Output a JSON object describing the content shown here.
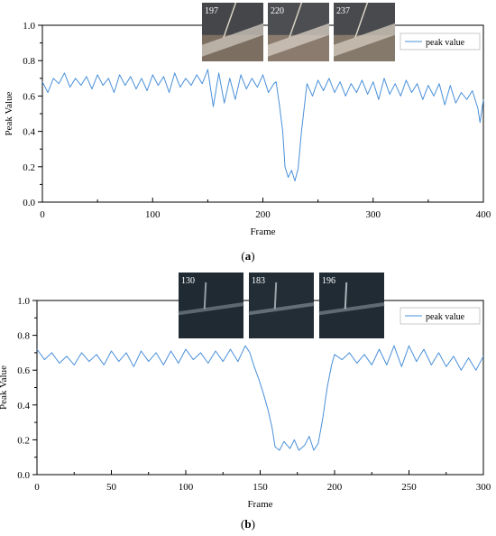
{
  "panels": [
    {
      "caption": "(a)",
      "caption_letter": "a",
      "thumbnails": [
        {
          "label": "197",
          "colors": [
            "#7d6e62",
            "#3a3f46",
            "#c9c2b8"
          ]
        },
        {
          "label": "220",
          "colors": [
            "#8a7b6e",
            "#41464d",
            "#d2cbc0"
          ]
        },
        {
          "label": "237",
          "colors": [
            "#85796c",
            "#3d4249",
            "#cfc7bc"
          ]
        }
      ],
      "chart_data": {
        "type": "line",
        "xlabel": "Frame",
        "ylabel": "Peak Value",
        "xlim": [
          0,
          400
        ],
        "ylim": [
          0.0,
          1.0
        ],
        "xticks": [
          0,
          100,
          200,
          300,
          400
        ],
        "yticks": [
          0.0,
          0.2,
          0.4,
          0.6,
          0.8,
          1.0
        ],
        "ytick_labels": [
          "0.0",
          "0.2",
          "0.4",
          "0.6",
          "0.8",
          "1.0"
        ],
        "grid": false,
        "legend": "top-right",
        "series": [
          {
            "name": "peak value",
            "color": "#4a90d9",
            "x": [
              0,
              5,
              10,
              15,
              20,
              25,
              30,
              35,
              40,
              45,
              50,
              55,
              60,
              65,
              70,
              75,
              80,
              85,
              90,
              95,
              100,
              105,
              110,
              115,
              120,
              125,
              130,
              135,
              140,
              145,
              150,
              155,
              160,
              165,
              170,
              175,
              180,
              185,
              190,
              195,
              200,
              205,
              210,
              212,
              215,
              218,
              220,
              223,
              226,
              229,
              232,
              235,
              240,
              245,
              250,
              255,
              260,
              265,
              270,
              275,
              280,
              285,
              290,
              295,
              300,
              305,
              310,
              315,
              320,
              325,
              330,
              335,
              340,
              345,
              350,
              355,
              360,
              365,
              370,
              375,
              380,
              385,
              390,
              395,
              397,
              400
            ],
            "y": [
              0.68,
              0.62,
              0.7,
              0.67,
              0.73,
              0.65,
              0.7,
              0.66,
              0.71,
              0.64,
              0.72,
              0.66,
              0.7,
              0.62,
              0.72,
              0.66,
              0.71,
              0.64,
              0.7,
              0.63,
              0.72,
              0.66,
              0.71,
              0.62,
              0.73,
              0.65,
              0.7,
              0.66,
              0.72,
              0.67,
              0.75,
              0.54,
              0.73,
              0.56,
              0.7,
              0.58,
              0.72,
              0.64,
              0.7,
              0.65,
              0.72,
              0.62,
              0.67,
              0.68,
              0.55,
              0.4,
              0.2,
              0.14,
              0.18,
              0.12,
              0.19,
              0.4,
              0.67,
              0.6,
              0.69,
              0.63,
              0.7,
              0.62,
              0.68,
              0.6,
              0.67,
              0.62,
              0.69,
              0.61,
              0.68,
              0.58,
              0.7,
              0.61,
              0.67,
              0.6,
              0.69,
              0.62,
              0.67,
              0.58,
              0.66,
              0.6,
              0.67,
              0.55,
              0.66,
              0.56,
              0.62,
              0.58,
              0.63,
              0.53,
              0.45,
              0.58
            ]
          }
        ]
      }
    },
    {
      "caption": "(b)",
      "caption_letter": "b",
      "thumbnails": [
        {
          "label": "130",
          "colors": [
            "#1f2a33",
            "#5d6770",
            "#c8d0d6"
          ]
        },
        {
          "label": "183",
          "colors": [
            "#222d36",
            "#646e77",
            "#cdd4d9"
          ]
        },
        {
          "label": "196",
          "colors": [
            "#202b34",
            "#606a73",
            "#e6eef2"
          ]
        }
      ],
      "chart_data": {
        "type": "line",
        "xlabel": "Frame",
        "ylabel": "Peak Value",
        "xlim": [
          0,
          300
        ],
        "ylim": [
          0.0,
          1.0
        ],
        "xticks": [
          0,
          50,
          100,
          150,
          200,
          250,
          300
        ],
        "yticks": [
          0.0,
          0.2,
          0.4,
          0.6,
          0.8,
          1.0
        ],
        "ytick_labels": [
          "0.0",
          "0.2",
          "0.4",
          "0.6",
          "0.8",
          "1.0"
        ],
        "grid": false,
        "legend": "top-right",
        "series": [
          {
            "name": "peak value",
            "color": "#4a90d9",
            "x": [
              0,
              5,
              10,
              15,
              20,
              25,
              30,
              35,
              40,
              45,
              50,
              55,
              60,
              65,
              70,
              75,
              80,
              85,
              90,
              95,
              100,
              105,
              110,
              115,
              120,
              125,
              130,
              135,
              140,
              143,
              146,
              149,
              152,
              155,
              158,
              160,
              163,
              166,
              170,
              173,
              176,
              180,
              183,
              186,
              189,
              192,
              195,
              198,
              200,
              205,
              210,
              215,
              220,
              225,
              230,
              235,
              240,
              245,
              250,
              255,
              260,
              265,
              270,
              275,
              280,
              285,
              290,
              295,
              300
            ],
            "y": [
              0.72,
              0.66,
              0.7,
              0.64,
              0.68,
              0.63,
              0.7,
              0.65,
              0.69,
              0.63,
              0.71,
              0.65,
              0.7,
              0.62,
              0.71,
              0.65,
              0.7,
              0.63,
              0.71,
              0.64,
              0.72,
              0.66,
              0.7,
              0.64,
              0.71,
              0.65,
              0.72,
              0.65,
              0.74,
              0.7,
              0.62,
              0.55,
              0.47,
              0.38,
              0.27,
              0.16,
              0.14,
              0.19,
              0.15,
              0.2,
              0.14,
              0.17,
              0.22,
              0.14,
              0.18,
              0.32,
              0.5,
              0.63,
              0.69,
              0.66,
              0.7,
              0.64,
              0.69,
              0.63,
              0.72,
              0.63,
              0.74,
              0.62,
              0.74,
              0.65,
              0.72,
              0.63,
              0.7,
              0.62,
              0.68,
              0.6,
              0.67,
              0.6,
              0.68
            ]
          }
        ]
      }
    }
  ]
}
